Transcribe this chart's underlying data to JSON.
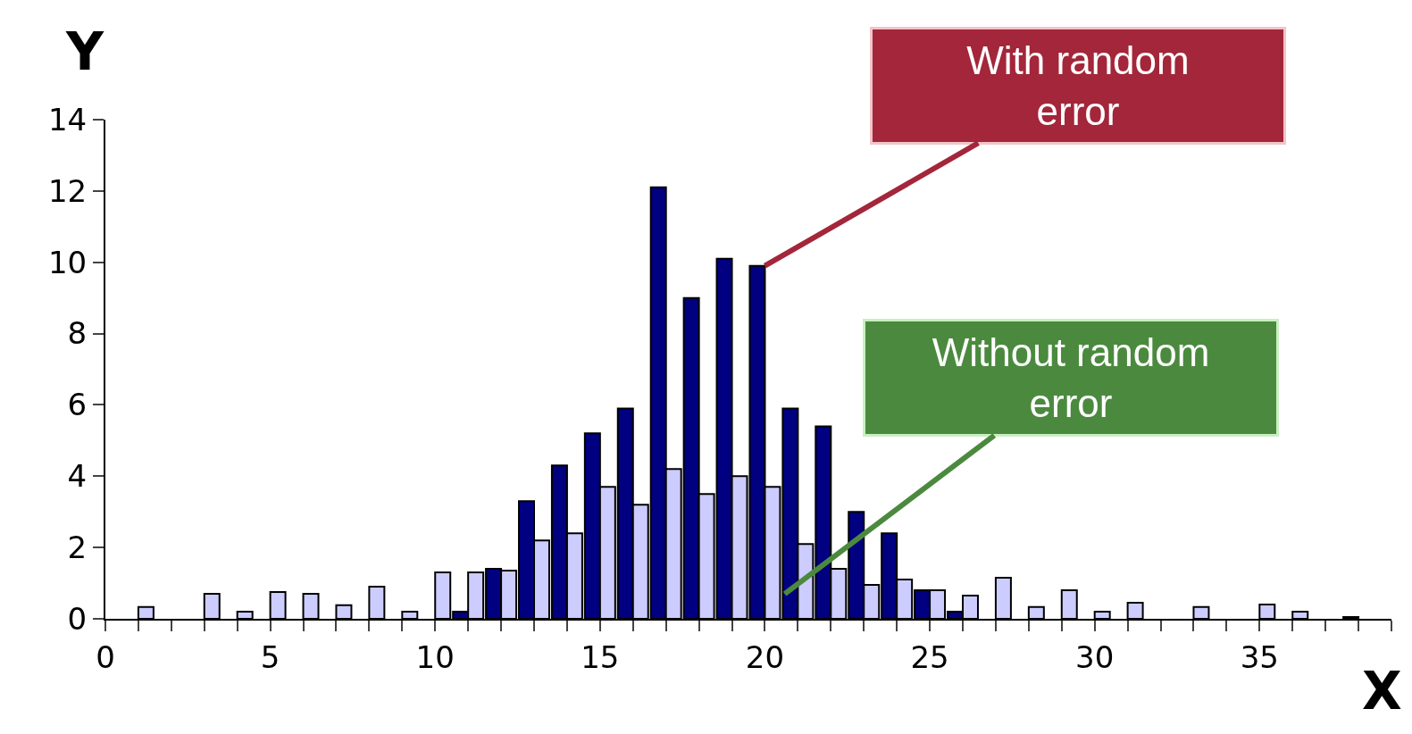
{
  "chart_data": {
    "type": "bar",
    "xlabel": "X",
    "ylabel": "Y",
    "x": [
      1,
      2,
      3,
      4,
      5,
      6,
      7,
      8,
      9,
      10,
      11,
      12,
      13,
      14,
      15,
      16,
      17,
      18,
      19,
      20,
      21,
      22,
      23,
      24,
      25,
      26,
      27,
      28,
      29,
      30,
      31,
      32,
      33,
      34,
      35,
      36,
      37,
      38
    ],
    "series": [
      {
        "color": "#000080",
        "values": [
          null,
          null,
          null,
          null,
          null,
          null,
          null,
          null,
          null,
          null,
          0.2,
          1.4,
          3.3,
          4.3,
          5.2,
          5.9,
          12.1,
          9.0,
          10.1,
          9.9,
          5.9,
          5.4,
          3.0,
          2.4,
          0.8,
          0.2,
          null,
          null,
          null,
          null,
          null,
          null,
          null,
          null,
          null,
          null,
          null,
          0.05
        ]
      },
      {
        "color": "#ccccff",
        "values": [
          0.33,
          null,
          0.7,
          0.2,
          0.75,
          0.7,
          0.38,
          0.9,
          0.2,
          1.3,
          1.3,
          1.35,
          2.2,
          2.4,
          3.7,
          3.2,
          4.2,
          3.5,
          4.0,
          3.7,
          2.1,
          1.4,
          0.95,
          1.1,
          0.8,
          0.65,
          1.15,
          0.33,
          0.8,
          0.2,
          0.45,
          null,
          0.33,
          null,
          0.4,
          0.2,
          null,
          null
        ]
      }
    ],
    "xlim": [
      0,
      39
    ],
    "xticks": [
      0,
      {
        "value": 1,
        "label": null
      },
      {
        "value": 2,
        "label": null
      },
      {
        "value": 3,
        "label": null
      },
      {
        "value": 4,
        "label": null
      },
      5,
      {
        "value": 6,
        "label": null
      },
      {
        "value": 7,
        "label": null
      },
      {
        "value": 8,
        "label": null
      },
      {
        "value": 9,
        "label": null
      },
      10,
      {
        "value": 11,
        "label": null
      },
      {
        "value": 12,
        "label": null
      },
      {
        "value": 13,
        "label": null
      },
      {
        "value": 14,
        "label": null
      },
      15,
      {
        "value": 16,
        "label": null
      },
      {
        "value": 17,
        "label": null
      },
      {
        "value": 18,
        "label": null
      },
      {
        "value": 19,
        "label": null
      },
      20,
      {
        "value": 21,
        "label": null
      },
      {
        "value": 22,
        "label": null
      },
      {
        "value": 23,
        "label": null
      },
      {
        "value": 24,
        "label": null
      },
      25,
      {
        "value": 26,
        "label": null
      },
      {
        "value": 27,
        "label": null
      },
      {
        "value": 28,
        "label": null
      },
      {
        "value": 29,
        "label": null
      },
      30,
      {
        "value": 31,
        "label": null
      },
      {
        "value": 32,
        "label": null
      },
      {
        "value": 33,
        "label": null
      },
      {
        "value": 34,
        "label": null
      },
      35,
      {
        "value": 36,
        "label": null
      },
      {
        "value": 37,
        "label": null
      },
      {
        "value": 38,
        "label": null
      },
      {
        "value": 39,
        "label": null
      }
    ],
    "ylim": [
      0,
      14
    ],
    "yticks": [
      0,
      2,
      4,
      6,
      8,
      10,
      12,
      14
    ],
    "annotations": [
      {
        "text": "With random error",
        "x": 20,
        "y": 9.9
      },
      {
        "text": "Without random error",
        "x": 20.6,
        "y": 0.7
      }
    ]
  }
}
